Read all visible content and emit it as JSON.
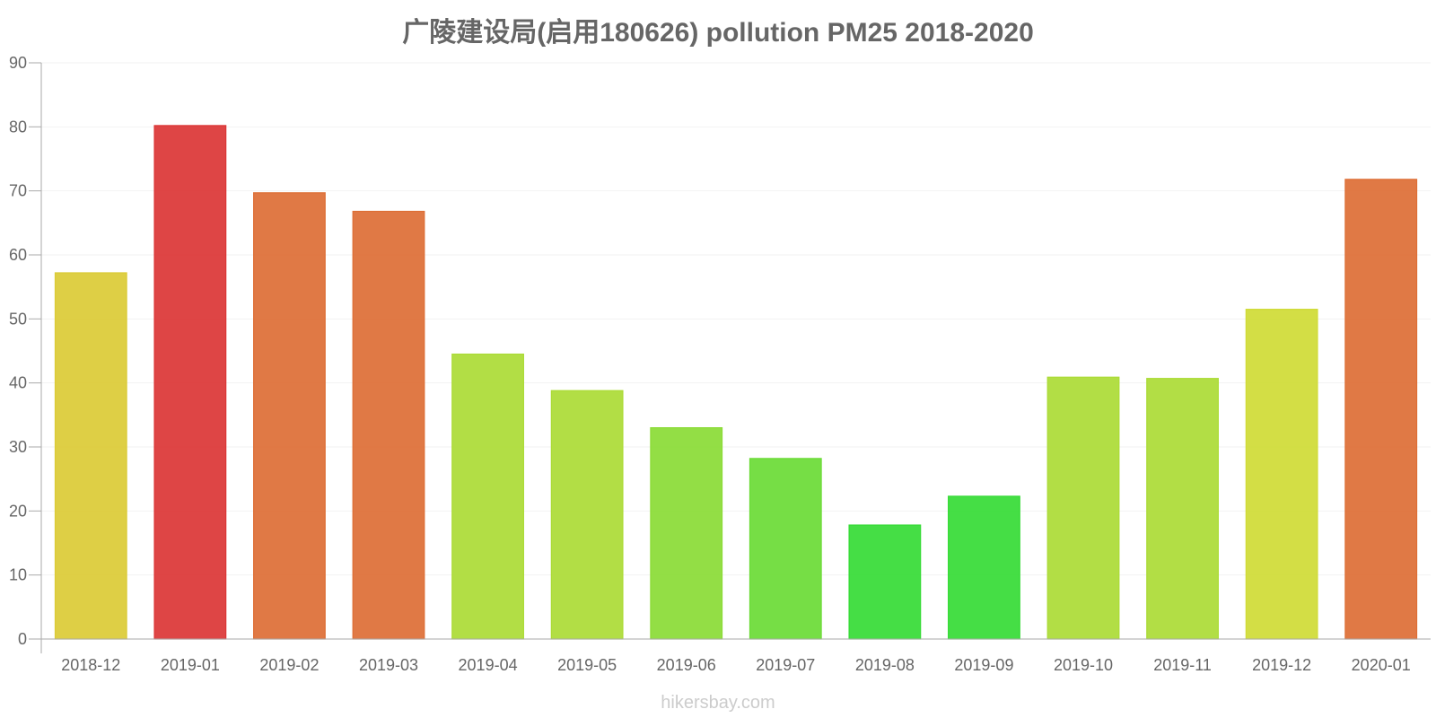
{
  "chart_data": {
    "type": "bar",
    "title": "广陵建设局(启用180626) pollution PM25 2018-2020",
    "xlabel": "",
    "ylabel": "",
    "ylim": [
      0,
      90
    ],
    "yticks": [
      0,
      10,
      20,
      30,
      40,
      50,
      60,
      70,
      80,
      90
    ],
    "grid": true,
    "categories": [
      "2018-12",
      "2019-01",
      "2019-02",
      "2019-03",
      "2019-04",
      "2019-05",
      "2019-06",
      "2019-07",
      "2019-08",
      "2019-09",
      "2019-10",
      "2019-11",
      "2019-12",
      "2020-01"
    ],
    "values": [
      57.2,
      80.2,
      69.7,
      66.8,
      44.5,
      38.8,
      33.0,
      28.2,
      17.8,
      22.3,
      40.9,
      40.7,
      51.5,
      71.8
    ],
    "colors": [
      "#dbcb35",
      "#db3535",
      "#dd6e35",
      "#dd6e35",
      "#abdb35",
      "#abdb35",
      "#8adb35",
      "#6adb35",
      "#35db35",
      "#35db35",
      "#abdb35",
      "#abdb35",
      "#cfdb35",
      "#dd6e35"
    ]
  },
  "watermark": "hikersbay.com"
}
